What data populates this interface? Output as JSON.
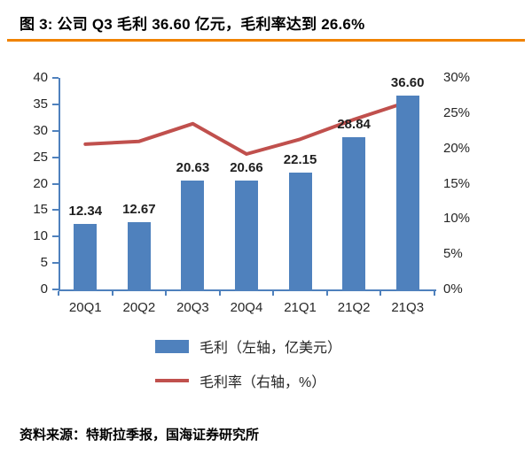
{
  "title": "图 3:  公司 Q3 毛利 36.60 亿元，毛利率达到 26.6%",
  "source": "资料来源：特斯拉季报，国海证券研究所",
  "colors": {
    "bar": "#4F81BD",
    "line": "#C0504D",
    "axis": "#4F81BD",
    "accent_rule": "#F08300",
    "text": "#262626"
  },
  "chart_data": {
    "type": "bar+line",
    "categories": [
      "20Q1",
      "20Q2",
      "20Q3",
      "20Q4",
      "21Q1",
      "21Q2",
      "21Q3"
    ],
    "series": [
      {
        "name": "毛利（左轴，亿美元）",
        "type": "bar",
        "axis": "left",
        "values": [
          12.34,
          12.67,
          20.63,
          20.66,
          22.15,
          28.84,
          36.6
        ],
        "value_labels": [
          "12.34",
          "12.67",
          "20.63",
          "20.66",
          "22.15",
          "28.84",
          "36.60"
        ]
      },
      {
        "name": "毛利率（右轴，%）",
        "type": "line",
        "axis": "right",
        "values": [
          20.6,
          21.0,
          23.5,
          19.2,
          21.3,
          24.1,
          26.6
        ]
      }
    ],
    "left_axis": {
      "min": 0,
      "max": 40,
      "step": 5,
      "ticks": [
        "0",
        "5",
        "10",
        "15",
        "20",
        "25",
        "30",
        "35",
        "40"
      ]
    },
    "right_axis": {
      "min": 0,
      "max": 30,
      "step": 5,
      "ticks": [
        "0%",
        "5%",
        "10%",
        "15%",
        "20%",
        "25%",
        "30%"
      ]
    },
    "grid": false,
    "legend_position": "bottom"
  }
}
